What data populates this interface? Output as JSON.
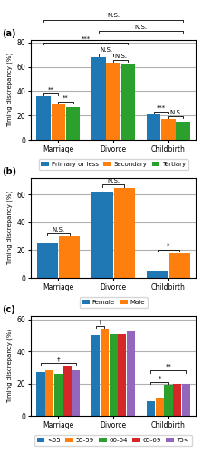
{
  "chart_data": [
    {
      "type": "bar",
      "title": "(a)",
      "categories": [
        "Marriage",
        "Divorce",
        "Childbirth"
      ],
      "series": [
        {
          "name": "Primary or less",
          "values": [
            36,
            68,
            21
          ]
        },
        {
          "name": "Secondary",
          "values": [
            29,
            63,
            17
          ]
        },
        {
          "name": "Tertiary",
          "values": [
            27,
            62,
            15
          ]
        }
      ],
      "ylim": [
        0,
        82
      ],
      "yticks": [
        0,
        20,
        40,
        60,
        80
      ],
      "ylabel": "Timing discrepancy (%)",
      "grid": true,
      "legend": "below",
      "annotations": [
        {
          "text": "**",
          "from": [
            "Marriage",
            "Primary or less"
          ],
          "to": [
            "Marriage",
            "Secondary"
          ]
        },
        {
          "text": "**",
          "from": [
            "Marriage",
            "Secondary"
          ],
          "to": [
            "Marriage",
            "Tertiary"
          ]
        },
        {
          "text": "***",
          "from": [
            "Childbirth",
            "Primary or less"
          ],
          "to": [
            "Childbirth",
            "Secondary"
          ]
        },
        {
          "text": "N.S.",
          "from": [
            "Childbirth",
            "Secondary"
          ],
          "to": [
            "Childbirth",
            "Tertiary"
          ]
        },
        {
          "text": "***",
          "from": [
            "Marriage",
            "Primary or less"
          ],
          "to": [
            "Divorce",
            "Tertiary"
          ]
        },
        {
          "text": "N.S.",
          "from": [
            "Divorce",
            "Primary or less"
          ],
          "to": [
            "Childbirth",
            "Tertiary"
          ]
        },
        {
          "text": "N.S.",
          "from": [
            "Marriage",
            "Primary or less"
          ],
          "to": [
            "Childbirth",
            "Tertiary"
          ]
        },
        {
          "text": "N.S.",
          "from": [
            "Divorce",
            "Primary or less"
          ],
          "to": [
            "Divorce",
            "Secondary"
          ]
        },
        {
          "text": "N.S.",
          "from": [
            "Divorce",
            "Secondary"
          ],
          "to": [
            "Divorce",
            "Tertiary"
          ]
        }
      ]
    },
    {
      "type": "bar",
      "title": "(b)",
      "categories": [
        "Marriage",
        "Divorce",
        "Childbirth"
      ],
      "series": [
        {
          "name": "Female",
          "values": [
            25,
            62,
            5
          ]
        },
        {
          "name": "Male",
          "values": [
            30,
            65,
            18
          ]
        }
      ],
      "ylim": [
        0,
        72
      ],
      "yticks": [
        0,
        20,
        40,
        60
      ],
      "ylabel": "Timing discrepancy (%)",
      "grid": true,
      "legend": "below",
      "annotations": [
        {
          "text": "N.S.",
          "from": [
            "Marriage",
            "Female"
          ],
          "to": [
            "Marriage",
            "Male"
          ]
        },
        {
          "text": "N.S.",
          "from": [
            "Divorce",
            "Female"
          ],
          "to": [
            "Divorce",
            "Male"
          ]
        },
        {
          "text": "*",
          "from": [
            "Childbirth",
            "Female"
          ],
          "to": [
            "Childbirth",
            "Male"
          ]
        }
      ]
    },
    {
      "type": "bar",
      "title": "(c)",
      "categories": [
        "Marriage",
        "Divorce",
        "Childbirth"
      ],
      "series": [
        {
          "name": "<55",
          "values": [
            27,
            50,
            9
          ]
        },
        {
          "name": "55-59",
          "values": [
            29,
            54,
            11
          ]
        },
        {
          "name": "60-64",
          "values": [
            26,
            51,
            19
          ]
        },
        {
          "name": "65-69",
          "values": [
            31,
            51,
            20
          ]
        },
        {
          "name": "75<",
          "values": [
            29,
            53,
            20
          ]
        }
      ],
      "ylim": [
        0,
        62
      ],
      "yticks": [
        0,
        20,
        40,
        60
      ],
      "ylabel": "Timing discrepancy (%)",
      "grid": true,
      "legend": "below",
      "annotations": [
        {
          "text": "†",
          "from": [
            "Marriage",
            "<55"
          ],
          "to": [
            "Marriage",
            "75<"
          ]
        },
        {
          "text": "†",
          "from": [
            "Divorce",
            "<55"
          ],
          "to": [
            "Divorce",
            "55-59"
          ]
        },
        {
          "text": "**",
          "from": [
            "Childbirth",
            "<55"
          ],
          "to": [
            "Childbirth",
            "75<"
          ]
        },
        {
          "text": "*",
          "from": [
            "Childbirth",
            "<55"
          ],
          "to": [
            "Childbirth",
            "60-64"
          ]
        }
      ]
    }
  ]
}
